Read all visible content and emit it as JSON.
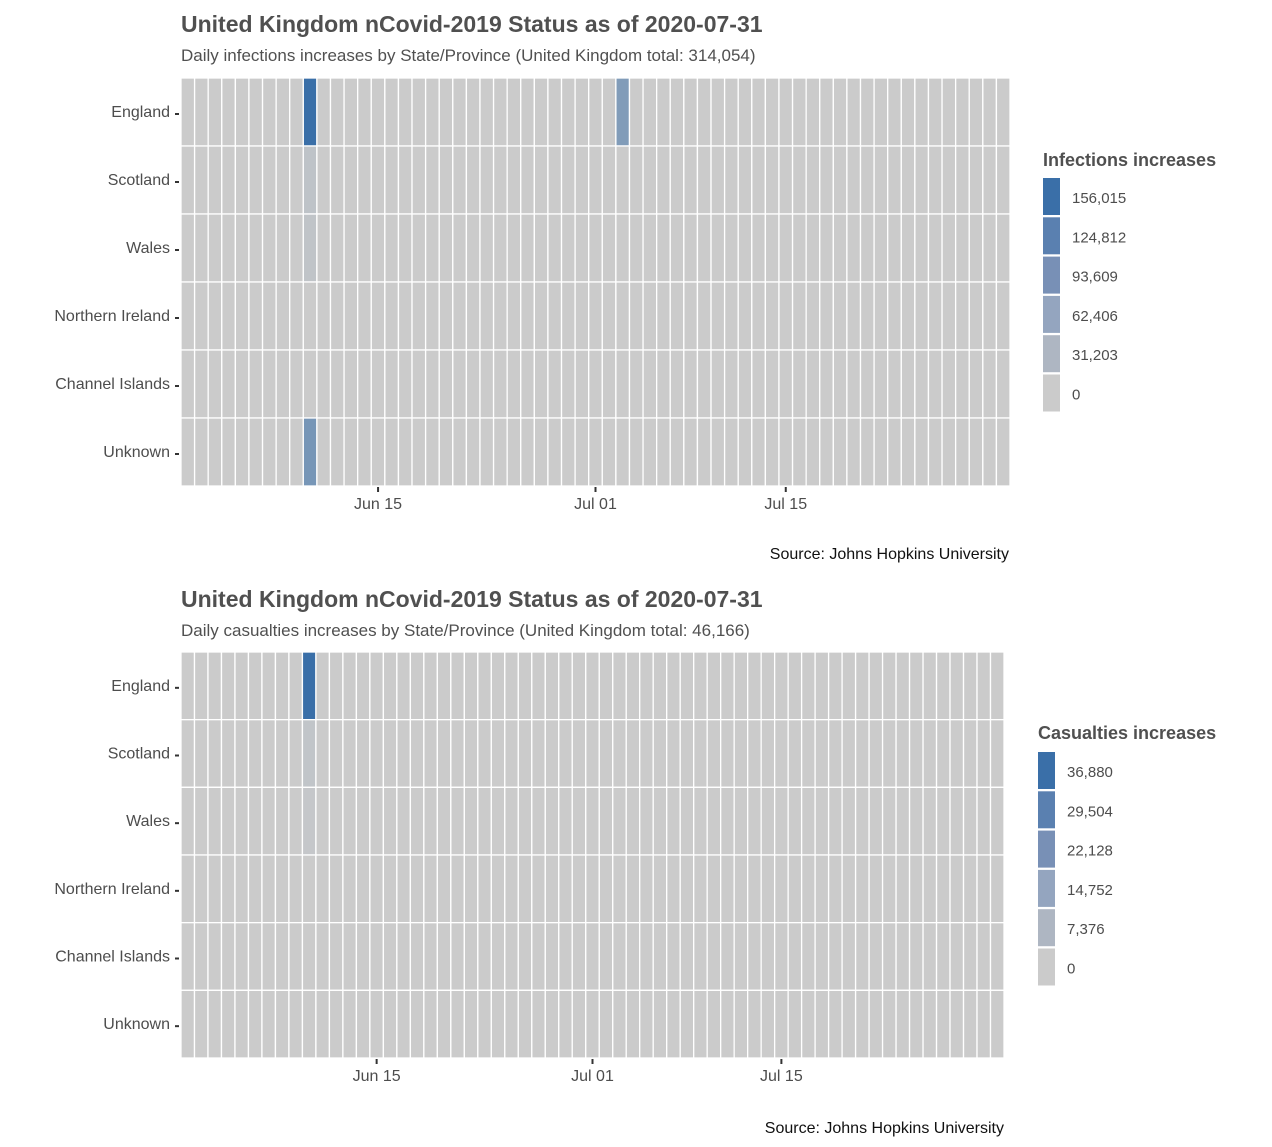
{
  "chart_data": [
    {
      "type": "heatmap",
      "title": "United Kingdom nCovid-2019 Status as of 2020-07-31",
      "subtitle": "Daily infections increases by State/Province (United Kingdom total: 314,054)",
      "caption": "Source: Johns Hopkins University",
      "legend_title": "Infections increases",
      "legend_labels": [
        "156,015",
        "124,812",
        "93,609",
        "62,406",
        "31,203",
        "0"
      ],
      "legend_colors": [
        "#3a6fa8",
        "#5a80b0",
        "#7890b6",
        "#94a5bf",
        "#aeb6c2",
        "#cbcbcb"
      ],
      "rows": [
        "England",
        "Scotland",
        "Wales",
        "Northern Ireland",
        "Channel Islands",
        "Unknown"
      ],
      "x_start": "2020-06-01",
      "x_end": "2020-07-31",
      "x_ticks": [
        {
          "date": "2020-06-15",
          "label": "Jun 15"
        },
        {
          "date": "2020-07-01",
          "label": "Jul 01"
        },
        {
          "date": "2020-07-15",
          "label": "Jul 15"
        }
      ],
      "scale_max": 156015,
      "values": [
        {
          "row": "England",
          "date": "2020-06-10",
          "value": 156015
        },
        {
          "row": "England",
          "date": "2020-07-03",
          "value": 80000
        },
        {
          "row": "Scotland",
          "date": "2020-06-10",
          "value": 14000
        },
        {
          "row": "Wales",
          "date": "2020-06-10",
          "value": 12000
        },
        {
          "row": "Unknown",
          "date": "2020-06-10",
          "value": 90000
        }
      ]
    },
    {
      "type": "heatmap",
      "title": "United Kingdom nCovid-2019 Status as of 2020-07-31",
      "subtitle": "Daily casualties increases by State/Province (United Kingdom total: 46,166)",
      "caption": "Source: Johns Hopkins University",
      "legend_title": "Casualties increases",
      "legend_labels": [
        "36,880",
        "29,504",
        "22,128",
        "14,752",
        "7,376",
        "0"
      ],
      "legend_colors": [
        "#3a6fa8",
        "#5a80b0",
        "#7890b6",
        "#94a5bf",
        "#aeb6c2",
        "#cbcbcb"
      ],
      "rows": [
        "England",
        "Scotland",
        "Wales",
        "Northern Ireland",
        "Channel Islands",
        "Unknown"
      ],
      "x_start": "2020-06-01",
      "x_end": "2020-07-31",
      "x_ticks": [
        {
          "date": "2020-06-15",
          "label": "Jun 15"
        },
        {
          "date": "2020-07-01",
          "label": "Jul 01"
        },
        {
          "date": "2020-07-15",
          "label": "Jul 15"
        }
      ],
      "scale_max": 36880,
      "values": [
        {
          "row": "England",
          "date": "2020-06-10",
          "value": 36880
        },
        {
          "row": "Scotland",
          "date": "2020-06-10",
          "value": 2500
        },
        {
          "row": "Wales",
          "date": "2020-06-10",
          "value": 1500
        }
      ]
    }
  ]
}
